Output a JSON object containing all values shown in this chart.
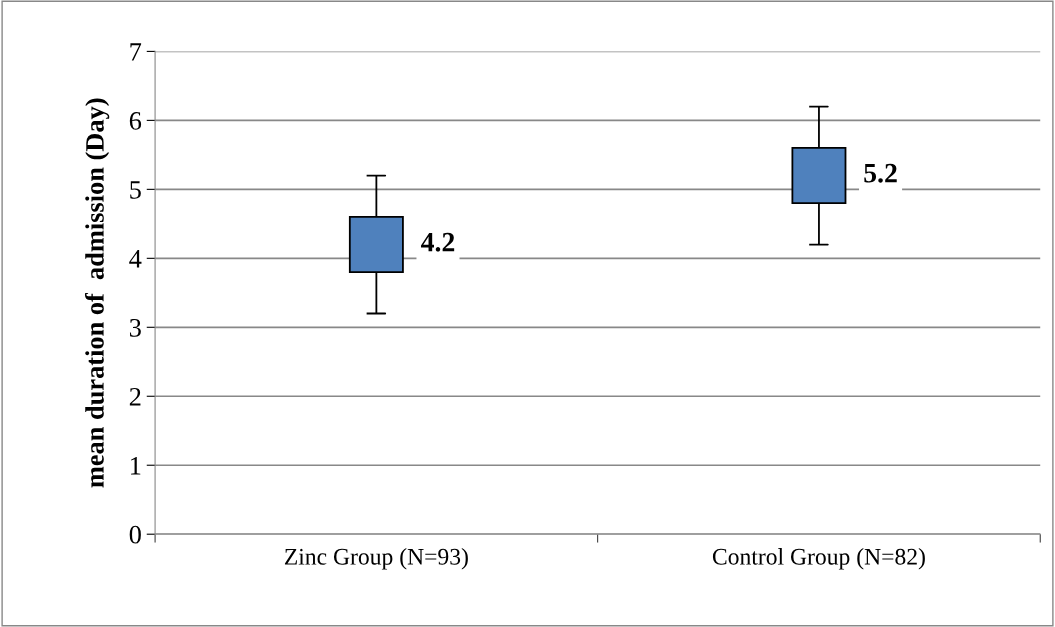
{
  "chart_data": {
    "type": "candlestick",
    "ylabel": "mean duration of  admission (Day)",
    "categories": [
      "Zinc Group (N=93)",
      "Control Group (N=82)"
    ],
    "ohlc": [
      [
        3.8,
        5.2,
        3.2,
        4.6
      ],
      [
        4.8,
        6.2,
        4.2,
        5.6
      ]
    ],
    "color": "#4f81bd",
    "ylim": [
      0,
      7
    ],
    "yticks": [
      0,
      1,
      2,
      3,
      4,
      5,
      6,
      7
    ],
    "grid": "y",
    "annotations": [
      "4.2",
      "5.2"
    ]
  }
}
